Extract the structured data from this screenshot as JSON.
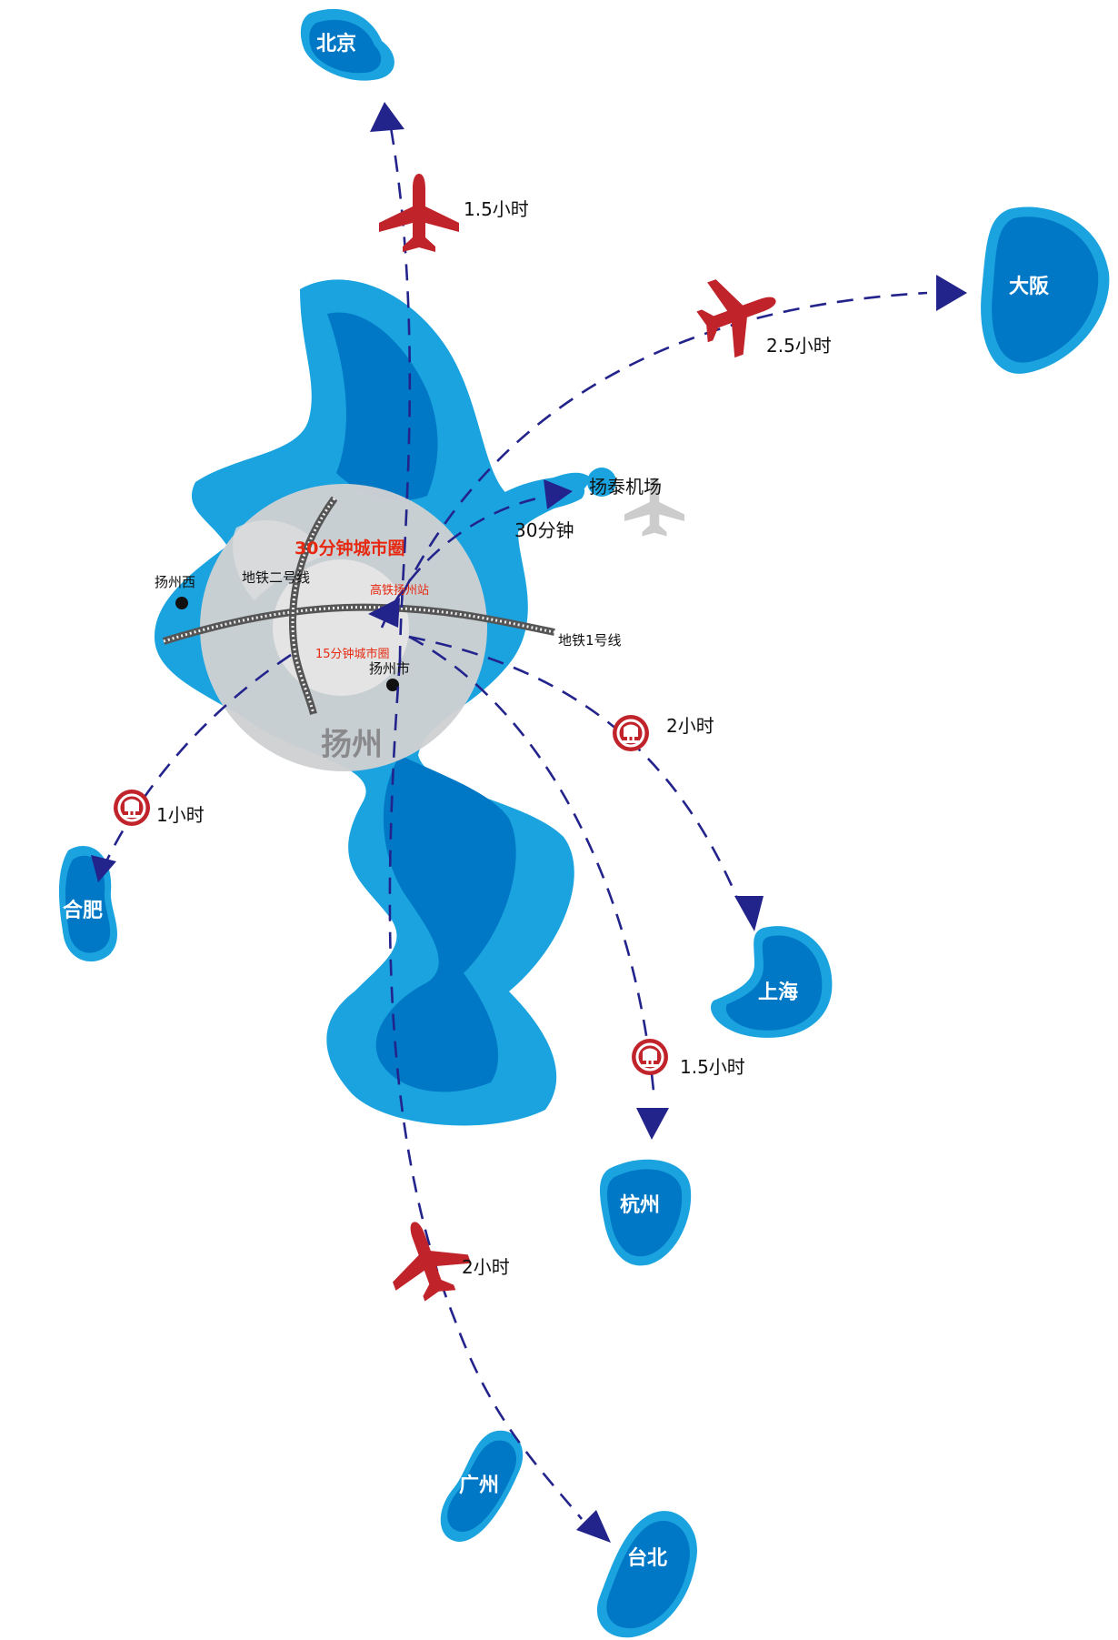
{
  "colors": {
    "light_blue": "#1aa3df",
    "dark_blue": "#0078c6",
    "route": "#23238c",
    "plane": "#c0232a",
    "rail": "#c0232a",
    "circle": "#cfd0d2",
    "highlight_red": "#e62910",
    "airport_plane": "#cccccc"
  },
  "center": {
    "name": "扬州",
    "ring_30": "30分钟城市圈",
    "ring_15": "15分钟城市圈",
    "hsr_station": "高铁扬州站",
    "metro_line_1": "地铁1号线",
    "metro_line_2": "地铁二号线",
    "station_west": "扬州西",
    "station_city": "扬州市"
  },
  "airport": {
    "name": "扬泰机场",
    "time": "30分钟",
    "icon": "airplane-icon"
  },
  "destinations": [
    {
      "id": "beijing",
      "name": "北京",
      "mode": "plane",
      "time": "1.5小时"
    },
    {
      "id": "osaka",
      "name": "大阪",
      "mode": "plane",
      "time": "2.5小时"
    },
    {
      "id": "hefei",
      "name": "合肥",
      "mode": "rail",
      "time": "1小时"
    },
    {
      "id": "shanghai",
      "name": "上海",
      "mode": "rail",
      "time": "2小时"
    },
    {
      "id": "hangzhou",
      "name": "杭州",
      "mode": "rail",
      "time": "1.5小时"
    },
    {
      "id": "guangzhou",
      "name": "广州",
      "mode": "plane",
      "time": ""
    },
    {
      "id": "taipei",
      "name": "台北",
      "mode": "plane",
      "time": "2小时"
    }
  ],
  "icons": {
    "plane": "airplane-icon",
    "rail": "high-speed-rail-icon"
  }
}
